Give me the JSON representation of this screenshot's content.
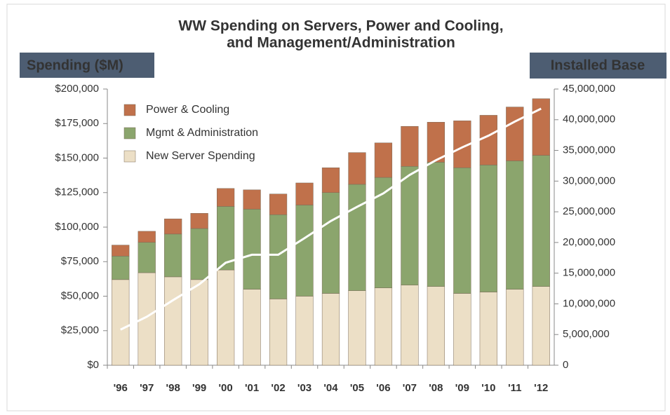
{
  "chart_data": {
    "type": "bar",
    "title": [
      "WW Spending on Servers, Power and Cooling,",
      "and Management/Administration"
    ],
    "y_label": "Spending ($M)",
    "y2_label": "Installed Base",
    "stacked": true,
    "categories": [
      "'96",
      "'97",
      "'98",
      "'99",
      "'00",
      "'01",
      "'02",
      "'03",
      "'04",
      "'05",
      "'06",
      "'07",
      "'08",
      "'09",
      "'10",
      "'11",
      "'12"
    ],
    "series": [
      {
        "name": "New Server Spending",
        "color": "#ecdfc6",
        "values": [
          62000,
          67000,
          64000,
          62000,
          69000,
          55000,
          48000,
          50000,
          52000,
          54000,
          56000,
          58000,
          57000,
          52000,
          53000,
          55000,
          57000
        ]
      },
      {
        "name": "Mgmt & Administration",
        "color": "#8ba56d",
        "values": [
          17000,
          22000,
          31000,
          37000,
          46000,
          58000,
          61000,
          66000,
          73000,
          77000,
          80000,
          86000,
          90000,
          91000,
          92000,
          93000,
          95000
        ]
      },
      {
        "name": "Power & Cooling",
        "color": "#c0714b",
        "values": [
          8000,
          8000,
          11000,
          11000,
          13000,
          14000,
          15000,
          16000,
          18000,
          23000,
          25000,
          29000,
          29000,
          34000,
          36000,
          39000,
          41000
        ]
      },
      {
        "name": "Installed Base",
        "type": "line",
        "axis": "y2",
        "color": "#ffffff",
        "values": [
          5800000,
          7900000,
          10600000,
          13200000,
          16700000,
          18000000,
          18000000,
          20700000,
          23500000,
          25800000,
          28000000,
          31000000,
          33400000,
          35500000,
          37400000,
          39700000,
          41800000
        ]
      }
    ],
    "ylim": [
      0,
      200000
    ],
    "yticks": [
      {
        "value": 0,
        "label": "$0"
      },
      {
        "value": 25000,
        "label": "$25,000"
      },
      {
        "value": 50000,
        "label": "$50,000"
      },
      {
        "value": 75000,
        "label": "$75,000"
      },
      {
        "value": 100000,
        "label": "$100,000"
      },
      {
        "value": 125000,
        "label": "$125,000"
      },
      {
        "value": 150000,
        "label": "$150,000"
      },
      {
        "value": 175000,
        "label": "$175,000"
      },
      {
        "value": 200000,
        "label": "$200,000"
      }
    ],
    "y2lim": [
      0,
      45000000
    ],
    "y2ticks": [
      0,
      {
        "value": 5000000,
        "label": "5,000,000"
      },
      {
        "value": 10000000,
        "label": "10,000,000"
      },
      {
        "value": 15000000,
        "label": "15,000,000"
      },
      {
        "value": 20000000,
        "label": "20,000,000"
      },
      {
        "value": 25000000,
        "label": "25,000,000"
      },
      {
        "value": 30000000,
        "label": "30,000,000"
      },
      {
        "value": 35000000,
        "label": "35,000,000"
      },
      {
        "value": 40000000,
        "label": "40,000,000"
      },
      {
        "value": 45000000,
        "label": "45,000,000"
      }
    ],
    "legend": "top-left"
  }
}
